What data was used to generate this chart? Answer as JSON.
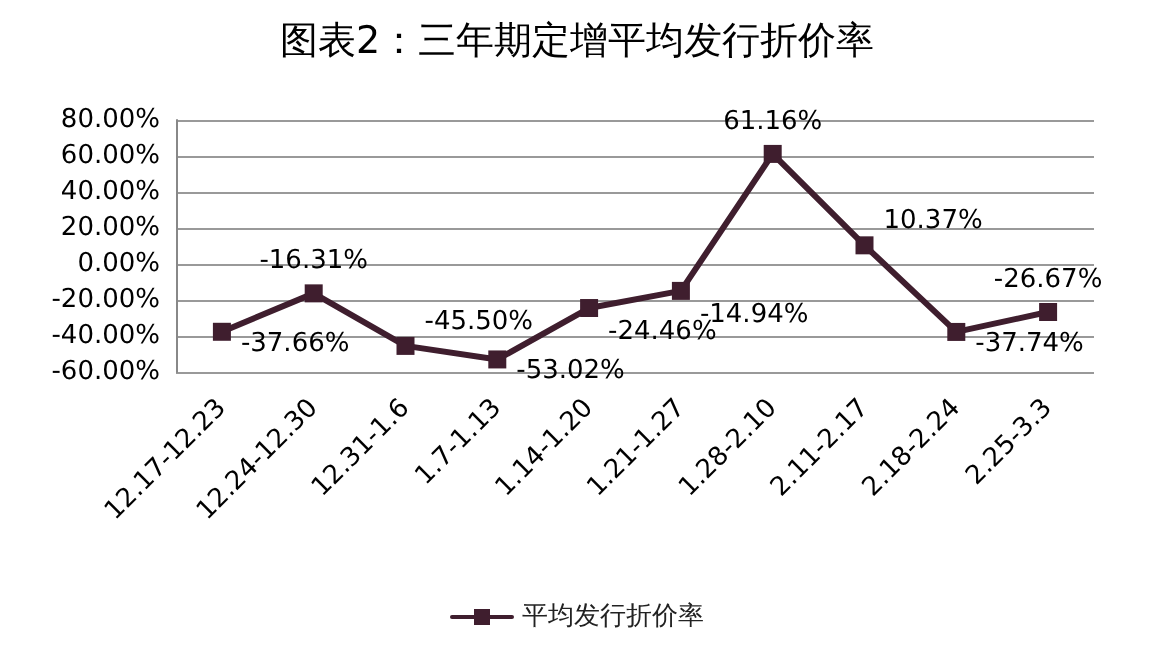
{
  "chart_data": {
    "type": "line",
    "title": "图表2：三年期定增平均发行折价率",
    "categories": [
      "12.17-12.23",
      "12.24-12.30",
      "12.31-1.6",
      "1.7-1.13",
      "1.14-1.20",
      "1.21-1.27",
      "1.28-2.10",
      "2.11-2.17",
      "2.18-2.24",
      "2.25-3.3"
    ],
    "series": [
      {
        "name": "平均发行折价率",
        "color": "#3f1e2e",
        "values": [
          -37.66,
          -16.31,
          -45.5,
          -53.02,
          -24.46,
          -14.94,
          61.16,
          10.37,
          -37.74,
          -26.67
        ],
        "value_labels": [
          "-37.66%",
          "-16.31%",
          "-45.50%",
          "-53.02%",
          "-24.46%",
          "-14.94%",
          "61.16%",
          "10.37%",
          "-37.74%",
          "-26.67%"
        ]
      }
    ],
    "ylim": [
      -60,
      80
    ],
    "yticks": [
      {
        "value": -60,
        "label": "-60.00%"
      },
      {
        "value": -40,
        "label": "-40.00%"
      },
      {
        "value": -20,
        "label": "-20.00%"
      },
      {
        "value": 0,
        "label": "0.00%"
      },
      {
        "value": 20,
        "label": "20.00%"
      },
      {
        "value": 40,
        "label": "40.00%"
      },
      {
        "value": 60,
        "label": "60.00%"
      },
      {
        "value": 80,
        "label": "80.00%"
      }
    ],
    "grid": "y",
    "legend": "bottom",
    "marker": "square",
    "line_style": "solid"
  }
}
